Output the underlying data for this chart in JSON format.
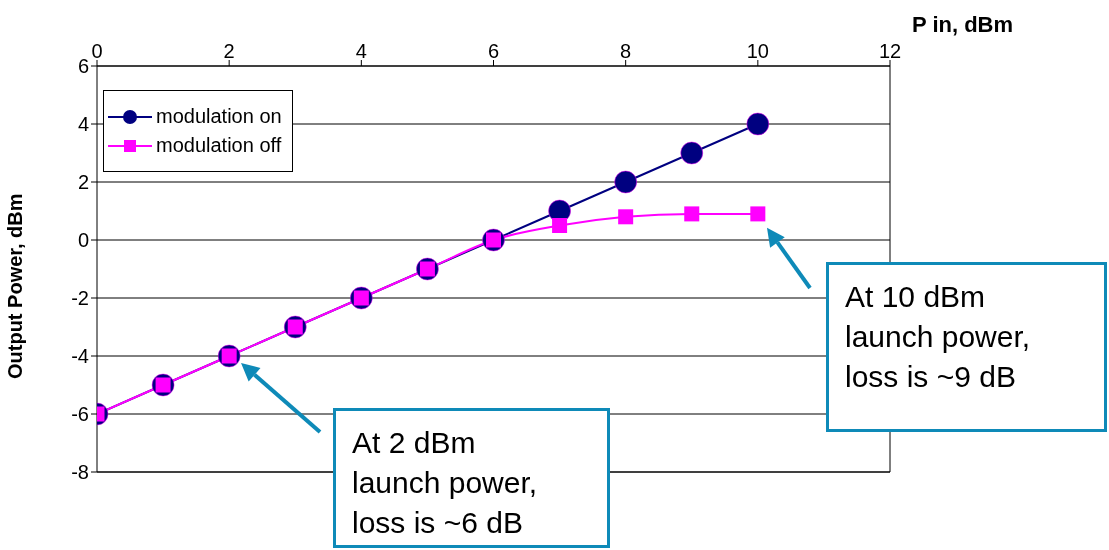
{
  "chart_data": {
    "type": "line",
    "xlabel": "P in, dBm",
    "ylabel": "Output Power, dBm",
    "x": [
      0,
      1,
      2,
      3,
      4,
      5,
      6,
      7,
      8,
      9,
      10
    ],
    "series": [
      {
        "name": "modulation on",
        "color": "#000080",
        "marker": "circle",
        "values": [
          -6,
          -5,
          -4,
          -3,
          -2,
          -1,
          0,
          1,
          2,
          3,
          4
        ]
      },
      {
        "name": "modulation off",
        "color": "#ff00ff",
        "marker": "square",
        "values": [
          -6,
          -5,
          -4,
          -3,
          -2,
          -1,
          0,
          0.5,
          0.8,
          0.9,
          0.9
        ]
      }
    ],
    "xlim": [
      0,
      12
    ],
    "xticks": [
      0,
      2,
      4,
      6,
      8,
      10,
      12
    ],
    "ylim": [
      -8,
      6
    ],
    "yticks": [
      -8,
      -6,
      -4,
      -2,
      0,
      2,
      4,
      6
    ],
    "grid": "y",
    "legend": "top left",
    "line_style": "solid",
    "annotations": [
      "At 2 dBm launch power, loss is ~6 dB",
      "At 10 dBm launch power, loss is ~9 dB"
    ]
  }
}
